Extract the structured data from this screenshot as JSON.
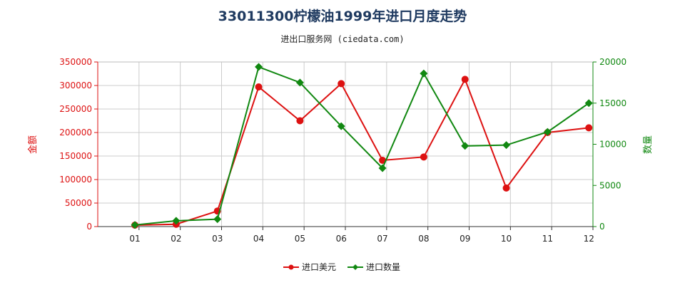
{
  "title": "33011300柠檬油1999年进口月度走势",
  "subtitle": "进出口服务网 (ciedata.com)",
  "colors": {
    "left_axis": "#dd1111",
    "right_axis": "#118811",
    "grid": "#cccccc",
    "axis": "#333333"
  },
  "chart_data": {
    "type": "line",
    "categories": [
      "01",
      "02",
      "03",
      "04",
      "05",
      "06",
      "07",
      "08",
      "09",
      "10",
      "11",
      "12"
    ],
    "left_axis": {
      "label": "金额",
      "ylim": [
        0,
        350000
      ],
      "ticks": [
        0,
        50000,
        100000,
        150000,
        200000,
        250000,
        300000,
        350000
      ]
    },
    "right_axis": {
      "label": "数量",
      "ylim": [
        0,
        20000
      ],
      "ticks": [
        0,
        5000,
        10000,
        15000,
        20000
      ]
    },
    "series": [
      {
        "name": "进口美元",
        "axis": "left",
        "color": "#dd1111",
        "marker": "circle",
        "values": [
          3000,
          5000,
          33000,
          297000,
          225000,
          304000,
          141000,
          148000,
          313000,
          82000,
          200000,
          210000
        ]
      },
      {
        "name": "进口数量",
        "axis": "right",
        "color": "#118811",
        "marker": "diamond",
        "values": [
          200,
          700,
          900,
          19400,
          17500,
          12200,
          7100,
          18600,
          9800,
          9900,
          11500,
          15000
        ]
      }
    ],
    "grid": true,
    "legend": "bottom-center"
  }
}
